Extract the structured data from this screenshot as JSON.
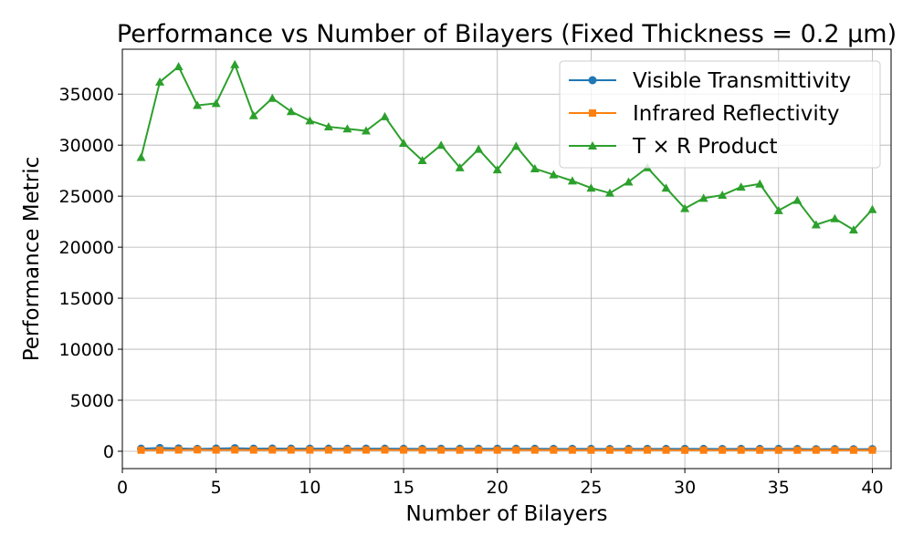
{
  "chart_data": {
    "type": "line",
    "title": "Performance vs Number of Bilayers (Fixed Thickness = 0.2 μm)",
    "xlabel": "Number of Bilayers",
    "ylabel": "Performance Metric",
    "xlim": [
      0,
      41
    ],
    "ylim": [
      -1700,
      39400
    ],
    "xticks": [
      0,
      5,
      10,
      15,
      20,
      25,
      30,
      35,
      40
    ],
    "yticks": [
      0,
      5000,
      10000,
      15000,
      20000,
      25000,
      30000,
      35000
    ],
    "grid": true,
    "legend_position": "top-right",
    "x": [
      1,
      2,
      3,
      4,
      5,
      6,
      7,
      8,
      9,
      10,
      11,
      12,
      13,
      14,
      15,
      16,
      17,
      18,
      19,
      20,
      21,
      22,
      23,
      24,
      25,
      26,
      27,
      28,
      29,
      30,
      31,
      32,
      33,
      34,
      35,
      36,
      37,
      38,
      39,
      40
    ],
    "series": [
      {
        "name": "Visible Transmittivity",
        "color": "#1f77b4",
        "marker": "circle",
        "values": [
          250,
          320,
          280,
          230,
          270,
          300,
          260,
          270,
          260,
          260,
          250,
          245,
          255,
          250,
          240,
          235,
          245,
          240,
          240,
          245,
          240,
          240,
          235,
          235,
          230,
          225,
          230,
          235,
          230,
          235,
          230,
          225,
          230,
          230,
          230,
          220,
          200,
          205,
          195,
          215
        ]
      },
      {
        "name": "Infrared Reflectivity",
        "color": "#ff7f0e",
        "marker": "square",
        "values": [
          110,
          115,
          130,
          145,
          125,
          135,
          125,
          130,
          125,
          125,
          125,
          130,
          125,
          130,
          125,
          120,
          120,
          115,
          120,
          115,
          120,
          115,
          115,
          115,
          110,
          110,
          110,
          115,
          110,
          105,
          110,
          110,
          110,
          110,
          105,
          110,
          110,
          110,
          105,
          110
        ]
      },
      {
        "name": "T × R Product",
        "color": "#2ca02c",
        "marker": "triangle",
        "values": [
          28800,
          36200,
          37700,
          33900,
          34100,
          37900,
          32900,
          34600,
          33300,
          32400,
          31800,
          31600,
          31400,
          32800,
          30200,
          28500,
          30000,
          27800,
          29600,
          27600,
          29900,
          27700,
          27100,
          26500,
          25800,
          25300,
          26400,
          27800,
          25800,
          23800,
          24800,
          25100,
          25900,
          26200,
          23600,
          24600,
          22200,
          22800,
          21700,
          23700
        ]
      }
    ]
  }
}
